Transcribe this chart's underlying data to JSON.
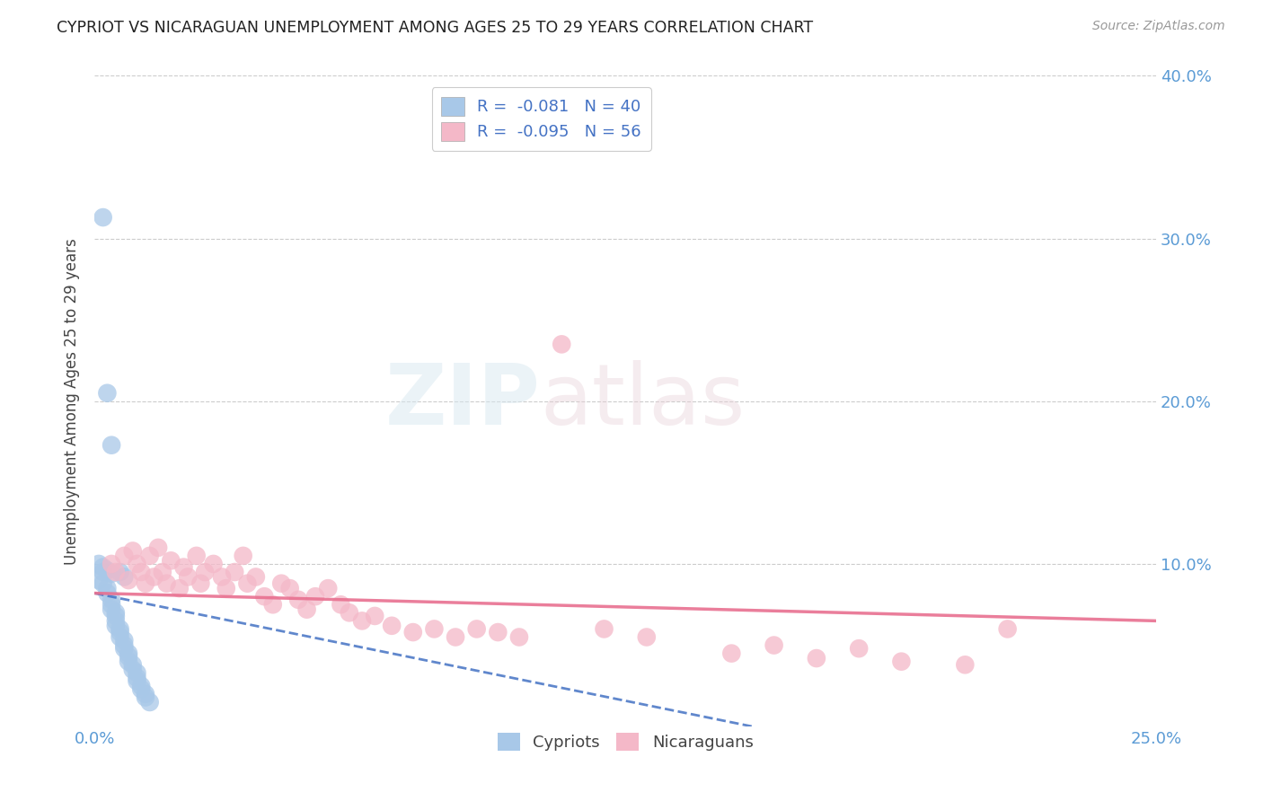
{
  "title": "CYPRIOT VS NICARAGUAN UNEMPLOYMENT AMONG AGES 25 TO 29 YEARS CORRELATION CHART",
  "source": "Source: ZipAtlas.com",
  "ylabel": "Unemployment Among Ages 25 to 29 years",
  "tick_color": "#5b9bd5",
  "xlim": [
    0.0,
    0.25
  ],
  "ylim": [
    0.0,
    0.4
  ],
  "xticks": [
    0.0,
    0.05,
    0.1,
    0.15,
    0.2,
    0.25
  ],
  "yticks": [
    0.0,
    0.1,
    0.2,
    0.3,
    0.4
  ],
  "xtick_labels": [
    "0.0%",
    "",
    "",
    "",
    "",
    "25.0%"
  ],
  "ytick_labels": [
    "",
    "10.0%",
    "20.0%",
    "30.0%",
    "40.0%"
  ],
  "legend_R_blue": "-0.081",
  "legend_N_blue": "40",
  "legend_R_pink": "-0.095",
  "legend_N_pink": "56",
  "blue_color": "#a8c8e8",
  "pink_color": "#f4b8c8",
  "blue_line_color": "#4472c4",
  "pink_line_color": "#e87090",
  "watermark_text": "ZIPatlas",
  "cypriot_x": [
    0.001,
    0.002,
    0.002,
    0.002,
    0.003,
    0.003,
    0.003,
    0.004,
    0.004,
    0.004,
    0.004,
    0.005,
    0.005,
    0.005,
    0.005,
    0.006,
    0.006,
    0.006,
    0.006,
    0.007,
    0.007,
    0.007,
    0.007,
    0.008,
    0.008,
    0.008,
    0.009,
    0.009,
    0.01,
    0.01,
    0.01,
    0.011,
    0.011,
    0.012,
    0.012,
    0.013,
    0.001,
    0.002,
    0.003,
    0.004
  ],
  "cypriot_y": [
    0.09,
    0.095,
    0.088,
    0.313,
    0.085,
    0.082,
    0.205,
    0.078,
    0.075,
    0.173,
    0.072,
    0.07,
    0.068,
    0.065,
    0.062,
    0.06,
    0.058,
    0.055,
    0.095,
    0.053,
    0.05,
    0.048,
    0.092,
    0.045,
    0.043,
    0.04,
    0.038,
    0.035,
    0.033,
    0.03,
    0.028,
    0.025,
    0.023,
    0.02,
    0.018,
    0.015,
    0.1,
    0.098,
    0.096,
    0.094
  ],
  "nicaraguan_x": [
    0.004,
    0.005,
    0.007,
    0.008,
    0.009,
    0.01,
    0.011,
    0.012,
    0.013,
    0.014,
    0.015,
    0.016,
    0.017,
    0.018,
    0.02,
    0.021,
    0.022,
    0.024,
    0.025,
    0.026,
    0.028,
    0.03,
    0.031,
    0.033,
    0.035,
    0.036,
    0.038,
    0.04,
    0.042,
    0.044,
    0.046,
    0.048,
    0.05,
    0.052,
    0.055,
    0.058,
    0.06,
    0.063,
    0.066,
    0.07,
    0.075,
    0.08,
    0.085,
    0.09,
    0.095,
    0.1,
    0.11,
    0.12,
    0.13,
    0.15,
    0.16,
    0.17,
    0.18,
    0.19,
    0.205,
    0.215
  ],
  "nicaraguan_y": [
    0.1,
    0.095,
    0.105,
    0.09,
    0.108,
    0.1,
    0.095,
    0.088,
    0.105,
    0.092,
    0.11,
    0.095,
    0.088,
    0.102,
    0.085,
    0.098,
    0.092,
    0.105,
    0.088,
    0.095,
    0.1,
    0.092,
    0.085,
    0.095,
    0.105,
    0.088,
    0.092,
    0.08,
    0.075,
    0.088,
    0.085,
    0.078,
    0.072,
    0.08,
    0.085,
    0.075,
    0.07,
    0.065,
    0.068,
    0.062,
    0.058,
    0.06,
    0.055,
    0.06,
    0.058,
    0.055,
    0.235,
    0.06,
    0.055,
    0.045,
    0.05,
    0.042,
    0.048,
    0.04,
    0.038,
    0.06
  ],
  "blue_line_x": [
    0.0,
    0.155
  ],
  "blue_line_y": [
    0.082,
    0.0
  ],
  "pink_line_x": [
    0.0,
    0.25
  ],
  "pink_line_y": [
    0.082,
    0.065
  ],
  "background_color": "#ffffff",
  "grid_color": "#cccccc"
}
